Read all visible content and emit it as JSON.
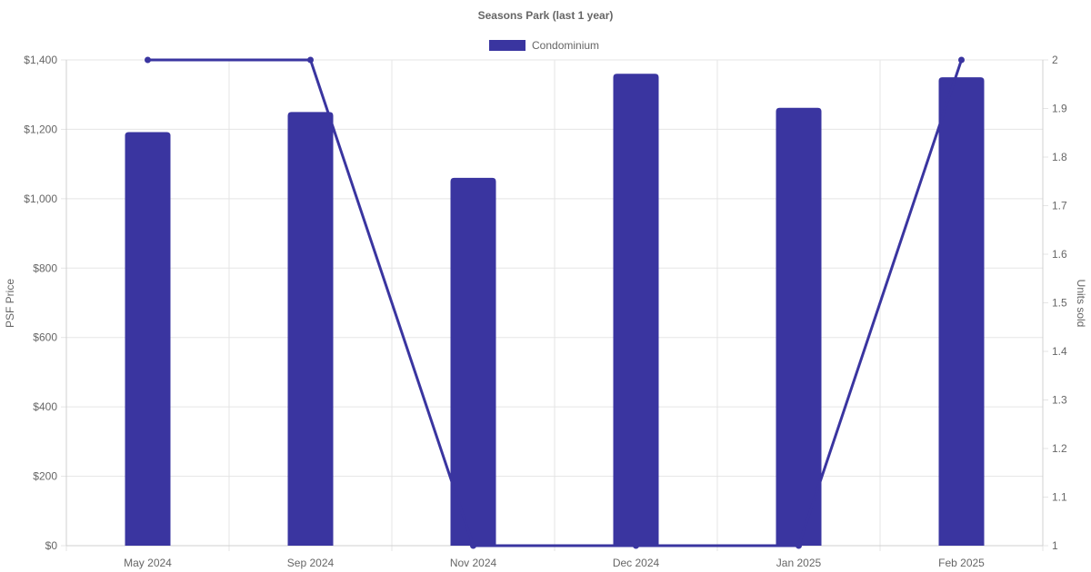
{
  "chart_data": {
    "type": "bar",
    "title": "Seasons Park (last 1 year)",
    "categories": [
      "May 2024",
      "Sep 2024",
      "Nov 2024",
      "Dec 2024",
      "Jan 2025",
      "Feb 2025"
    ],
    "series": [
      {
        "name": "Condominium",
        "type": "bar",
        "axis": "left",
        "values": [
          1192,
          1250,
          1060,
          1360,
          1262,
          1350
        ]
      },
      {
        "type": "line",
        "axis": "right",
        "values": [
          2,
          2,
          1,
          1,
          1,
          2
        ]
      }
    ],
    "y_left": {
      "label": "PSF Price",
      "range": [
        0,
        1400
      ],
      "ticks": [
        0,
        200,
        400,
        600,
        800,
        1000,
        1200,
        1400
      ],
      "tick_labels": [
        "$0",
        "$200",
        "$400",
        "$600",
        "$800",
        "$1,000",
        "$1,200",
        "$1,400"
      ]
    },
    "y_right": {
      "label": "Units sold",
      "range": [
        1,
        2
      ],
      "ticks": [
        1,
        1.1,
        1.2,
        1.3,
        1.4,
        1.5,
        1.6,
        1.7,
        1.8,
        1.9,
        2
      ],
      "tick_labels": [
        "1",
        "1.1",
        "1.2",
        "1.3",
        "1.4",
        "1.5",
        "1.6",
        "1.7",
        "1.8",
        "1.9",
        "2"
      ]
    },
    "grid": true,
    "legend_position": "top-center",
    "colors": {
      "series": "#3a35a0",
      "grid": "#e5e5e5",
      "text": "#666666"
    }
  }
}
